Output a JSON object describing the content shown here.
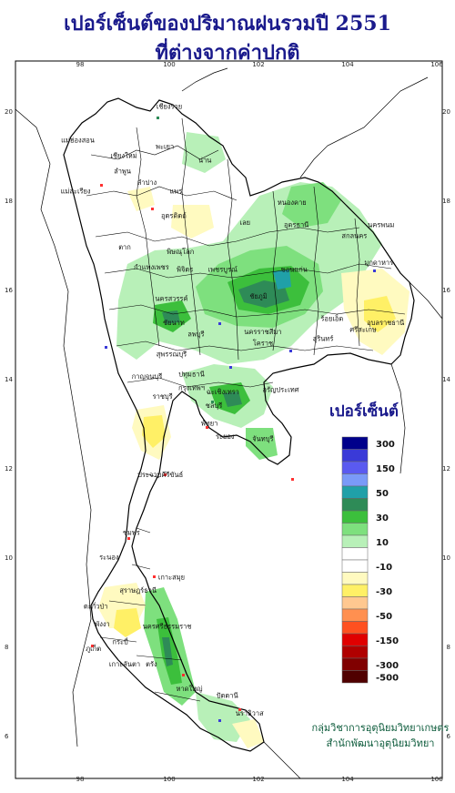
{
  "title_line1": "เปอร์เซ็นต์ของปริมาณฝนรวมปี 2551",
  "title_line2": "ที่ต่างจากค่าปกติ",
  "legend": {
    "title": "เปอร์เซ็นต์",
    "bins": [
      {
        "color": "#00008b",
        "label": "300"
      },
      {
        "color": "#3a3ad8",
        "label": ""
      },
      {
        "color": "#5a5af0",
        "label": "150"
      },
      {
        "color": "#7a9af8",
        "label": ""
      },
      {
        "color": "#20a0a8",
        "label": "50"
      },
      {
        "color": "#2e8b57",
        "label": ""
      },
      {
        "color": "#3cbf3c",
        "label": "30"
      },
      {
        "color": "#7ee07e",
        "label": ""
      },
      {
        "color": "#b8f0b8",
        "label": "10"
      },
      {
        "color": "#ffffff",
        "label": ""
      },
      {
        "color": "#ffffff",
        "label": "-10"
      },
      {
        "color": "#fffac0",
        "label": ""
      },
      {
        "color": "#fff066",
        "label": "-30"
      },
      {
        "color": "#ffc890",
        "label": ""
      },
      {
        "color": "#ff9050",
        "label": "-50"
      },
      {
        "color": "#ff5020",
        "label": ""
      },
      {
        "color": "#e00000",
        "label": "-150"
      },
      {
        "color": "#b00000",
        "label": ""
      },
      {
        "color": "#800000",
        "label": "-300"
      },
      {
        "color": "#500000",
        "label": "-500"
      }
    ]
  },
  "lon_ticks": [
    "98",
    "100",
    "102",
    "104",
    "106"
  ],
  "lat_ticks": [
    "20",
    "18",
    "16",
    "14",
    "12",
    "10",
    "8",
    "6"
  ],
  "places": [
    {
      "name": "เชียงราย",
      "lon": 100.0,
      "lat": 20.05
    },
    {
      "name": "แม่ฮ่องสอน",
      "lon": 97.95,
      "lat": 19.3
    },
    {
      "name": "พะเยา",
      "lon": 99.9,
      "lat": 19.15
    },
    {
      "name": "เชียงใหม่",
      "lon": 98.98,
      "lat": 18.95
    },
    {
      "name": "ลำพูน",
      "lon": 98.95,
      "lat": 18.6
    },
    {
      "name": "น่าน",
      "lon": 100.8,
      "lat": 18.85
    },
    {
      "name": "ลำปาง",
      "lon": 99.5,
      "lat": 18.35
    },
    {
      "name": "แพร่",
      "lon": 100.15,
      "lat": 18.15
    },
    {
      "name": "แม่สะเรียง",
      "lon": 97.9,
      "lat": 18.15
    },
    {
      "name": "อุตรดิตถ์",
      "lon": 100.1,
      "lat": 17.6
    },
    {
      "name": "หนองคาย",
      "lon": 102.75,
      "lat": 17.9
    },
    {
      "name": "อุดรธานี",
      "lon": 102.85,
      "lat": 17.4
    },
    {
      "name": "สกลนคร",
      "lon": 104.15,
      "lat": 17.15
    },
    {
      "name": "นครพนม",
      "lon": 104.75,
      "lat": 17.4
    },
    {
      "name": "เลย",
      "lon": 101.7,
      "lat": 17.45
    },
    {
      "name": "ตาก",
      "lon": 99.0,
      "lat": 16.9
    },
    {
      "name": "พิษณุโลก",
      "lon": 100.25,
      "lat": 16.8
    },
    {
      "name": "มุกดาหาร",
      "lon": 104.7,
      "lat": 16.55
    },
    {
      "name": "กำแพงเพชร",
      "lon": 99.6,
      "lat": 16.45
    },
    {
      "name": "พิจิตร",
      "lon": 100.35,
      "lat": 16.4
    },
    {
      "name": "เพชรบูรณ์",
      "lon": 101.2,
      "lat": 16.4
    },
    {
      "name": "ขอนแก่น",
      "lon": 102.8,
      "lat": 16.4
    },
    {
      "name": "นครสวรรค์",
      "lon": 100.05,
      "lat": 15.75
    },
    {
      "name": "ชัยภูมิ",
      "lon": 102.0,
      "lat": 15.8
    },
    {
      "name": "อุบลราชธานี",
      "lon": 104.85,
      "lat": 15.2
    },
    {
      "name": "ร้อยเอ็ด",
      "lon": 103.65,
      "lat": 15.3
    },
    {
      "name": "ชัยนาท",
      "lon": 100.1,
      "lat": 15.2
    },
    {
      "name": "ลพบุรี",
      "lon": 100.6,
      "lat": 14.95
    },
    {
      "name": "นครราชสีมา",
      "lon": 102.1,
      "lat": 15.0
    },
    {
      "name": "โคราช",
      "lon": 102.1,
      "lat": 14.75
    },
    {
      "name": "สุรินทร์",
      "lon": 103.45,
      "lat": 14.85
    },
    {
      "name": "ศรีสะเกษ",
      "lon": 104.35,
      "lat": 15.05
    },
    {
      "name": "สุพรรณบุรี",
      "lon": 100.05,
      "lat": 14.5
    },
    {
      "name": "กาญจนบุรี",
      "lon": 99.5,
      "lat": 14.0
    },
    {
      "name": "ปทุมธานี",
      "lon": 100.5,
      "lat": 14.05
    },
    {
      "name": "อรัญประเทศ",
      "lon": 102.5,
      "lat": 13.7
    },
    {
      "name": "ราชบุรี",
      "lon": 99.85,
      "lat": 13.55
    },
    {
      "name": "กรุงเทพฯ",
      "lon": 100.5,
      "lat": 13.75
    },
    {
      "name": "ชลบุรี",
      "lon": 101.0,
      "lat": 13.35
    },
    {
      "name": "ฉะเชิงเทรา",
      "lon": 101.2,
      "lat": 13.65
    },
    {
      "name": "พัทยา",
      "lon": 100.9,
      "lat": 12.95
    },
    {
      "name": "ระยอง",
      "lon": 101.25,
      "lat": 12.65
    },
    {
      "name": "จันทบุรี",
      "lon": 102.1,
      "lat": 12.6
    },
    {
      "name": "ประจวบคีรีขันธ์",
      "lon": 99.8,
      "lat": 11.8
    },
    {
      "name": "ชุมพร",
      "lon": 99.15,
      "lat": 10.5
    },
    {
      "name": "ระนอง",
      "lon": 98.65,
      "lat": 9.95
    },
    {
      "name": "เกาะสมุย",
      "lon": 100.05,
      "lat": 9.5
    },
    {
      "name": "สุราษฎร์ธานี",
      "lon": 99.3,
      "lat": 9.2
    },
    {
      "name": "ตะกั่วป่า",
      "lon": 98.35,
      "lat": 8.85
    },
    {
      "name": "พังงา",
      "lon": 98.5,
      "lat": 8.45
    },
    {
      "name": "นครศรีธรรมราช",
      "lon": 99.95,
      "lat": 8.4
    },
    {
      "name": "ภูเก็ต",
      "lon": 98.3,
      "lat": 7.9
    },
    {
      "name": "กระบี่",
      "lon": 98.9,
      "lat": 8.05
    },
    {
      "name": "เกาะลันตา",
      "lon": 99.0,
      "lat": 7.55
    },
    {
      "name": "ตรัง",
      "lon": 99.6,
      "lat": 7.55
    },
    {
      "name": "หาดใหญ่",
      "lon": 100.45,
      "lat": 7.0
    },
    {
      "name": "ปัตตานี",
      "lon": 101.3,
      "lat": 6.85
    },
    {
      "name": "นราธิวาส",
      "lon": 101.8,
      "lat": 6.45
    }
  ],
  "credit_line1": "กลุ่มวิชาการอุตุนิยมวิทยาเกษตร",
  "credit_line2": "สำนักพัฒนาอุตุนิยมวิทยา"
}
